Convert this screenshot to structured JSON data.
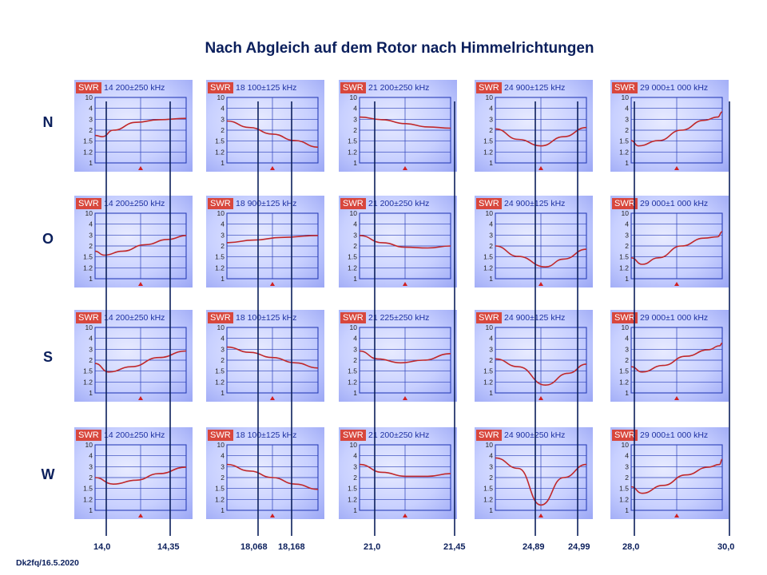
{
  "title": "Nach Abgleich auf dem Rotor nach Himmelrichtungen",
  "footer": "Dk2fq/16.5.2020",
  "colors": {
    "title_text": "#0b1f5c",
    "marker_line": "#0b1f5c",
    "swr_badge": "#d8473d",
    "swr_curve": "#c0282a",
    "grid": "#2a3fb8",
    "screen_bg": "#c8d0ff"
  },
  "analyzer_screen": {
    "badge": "SWR",
    "y_scale": [
      "10",
      "4",
      "3",
      "2",
      "1.5",
      "1.2",
      "1"
    ]
  },
  "rows": [
    {
      "label": "N",
      "screens": [
        "14 200±250 kHz",
        "18 100±125 kHz",
        "21 200±250 kHz",
        "24 900±125 kHz",
        "29 000±1 000 kHz"
      ]
    },
    {
      "label": "O",
      "screens": [
        "14 200±250 kHz",
        "18 900±125 kHz",
        "21 200±250 kHz",
        "24 900±125 kHz",
        "29 000±1 000 kHz"
      ]
    },
    {
      "label": "S",
      "screens": [
        "14 200±250 kHz",
        "18 100±125 kHz",
        "21 225±250 kHz",
        "24 900±125 kHz",
        "29 000±1 000 kHz"
      ]
    },
    {
      "label": "W",
      "screens": [
        "14 200±250 kHz",
        "18 100±125 kHz",
        "21 200±250 kHz",
        "24 900±250 kHz",
        "29 000±1 000 kHz"
      ]
    }
  ],
  "band_marks": [
    "14,0",
    "14,35",
    "18,068",
    "18,168",
    "21,0",
    "21,45",
    "24,89",
    "24,99",
    "28,0",
    "30,0"
  ]
}
